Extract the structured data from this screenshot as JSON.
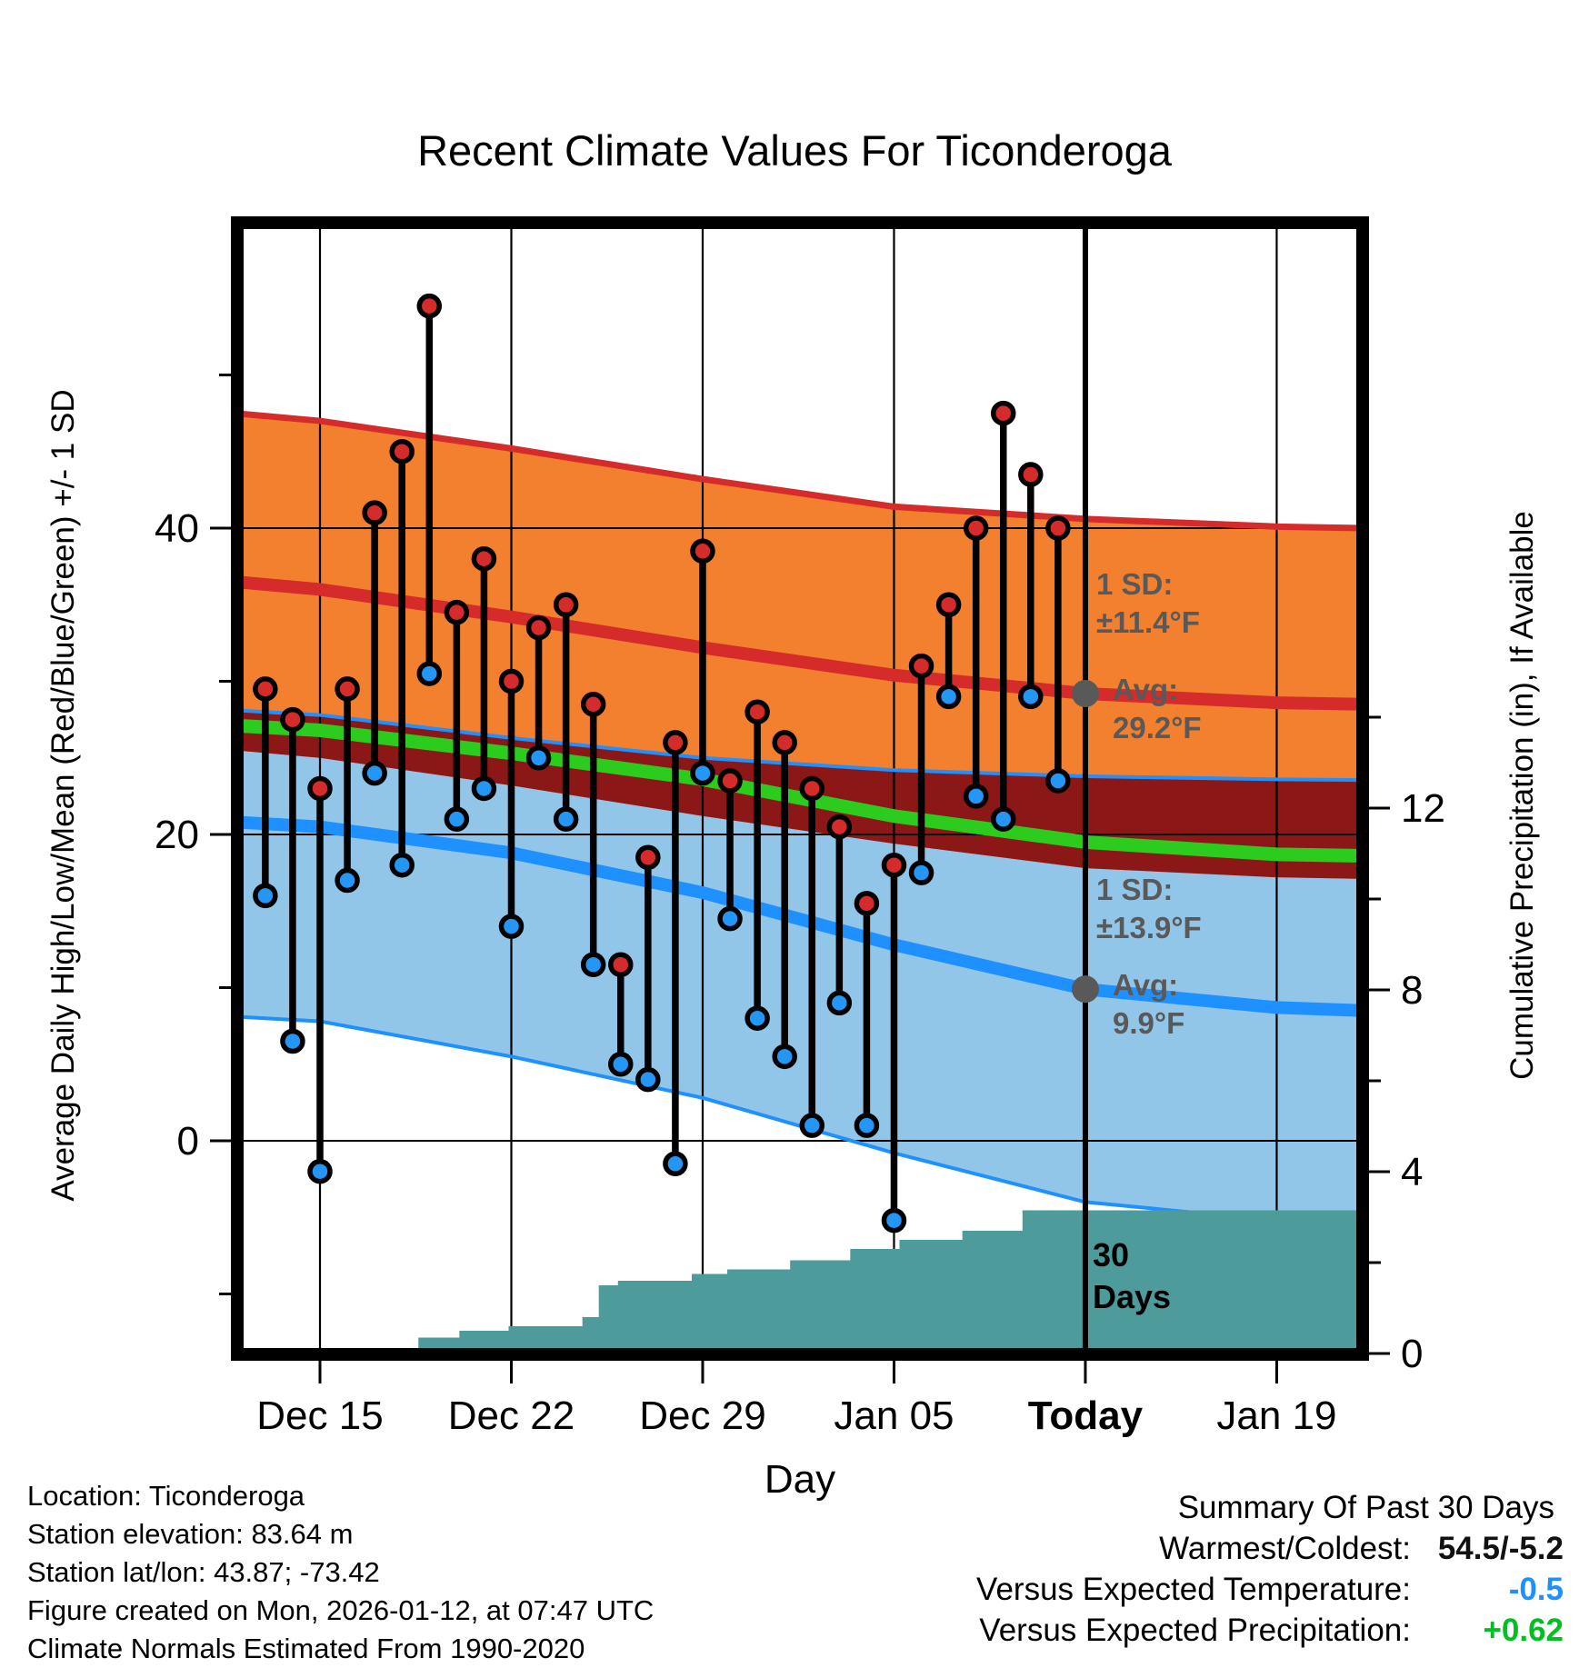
{
  "title": "Recent Climate Values For Ticonderoga",
  "axes": {
    "left_title": "Average Daily High/Low/Mean (Red/Blue/Green) +/- 1 SD",
    "right_title": "Cumulative Precipitation (in), If Available",
    "x_title": "Day"
  },
  "annotations": {
    "high": {
      "sd_label": "1 SD:",
      "sd_value": "±11.4°F",
      "avg_label": "Avg:",
      "avg_value": "29.2°F"
    },
    "low": {
      "sd_label": "1 SD:",
      "sd_value": "±13.9°F",
      "avg_label": "Avg:",
      "avg_value": "9.9°F"
    },
    "period": {
      "line1": "30",
      "line2": "Days"
    }
  },
  "footer_left": {
    "lines": [
      "Location: Ticonderoga",
      "Station elevation: 83.64 m",
      "Station lat/lon: 43.87; -73.42",
      "Figure created on Mon, 2026-01-12, at 07:47 UTC",
      "Climate Normals Estimated From 1990-2020"
    ]
  },
  "summary": {
    "title": "Summary Of Past 30 Days",
    "rows": [
      {
        "label": "Warmest/Coldest:",
        "value": "54.5/-5.2",
        "color": "#111111"
      },
      {
        "label": "Versus Expected Temperature:",
        "value": "-0.5",
        "color": "#1E90FF"
      },
      {
        "label": "Versus Expected Precipitation:",
        "value": "+0.62",
        "color": "#00BF22"
      }
    ]
  },
  "chart_data": {
    "type": "scatter",
    "subtype": "daily-high-low-stems-with-climatology-bands",
    "x_axis": {
      "ticks": [
        {
          "label": "Dec 15",
          "day": 2,
          "bold": false
        },
        {
          "label": "Dec 22",
          "day": 9,
          "bold": false
        },
        {
          "label": "Dec 29",
          "day": 16,
          "bold": false
        },
        {
          "label": "Jan 05",
          "day": 23,
          "bold": false
        },
        {
          "label": "Today",
          "day": 30,
          "bold": true
        },
        {
          "label": "Jan 19",
          "day": 37,
          "bold": false
        }
      ],
      "range_days": [
        -1.0,
        40.1
      ]
    },
    "y_left_axis": {
      "unit": "°F",
      "major_ticks": [
        {
          "label": "40",
          "value": 40
        },
        {
          "label": "20",
          "value": 20
        },
        {
          "label": "0",
          "value": 0
        }
      ],
      "minor_ticks": [
        50,
        30,
        10,
        -10
      ],
      "gridline_values": [
        40,
        20,
        0
      ]
    },
    "y_right_axis": {
      "unit": "in",
      "major_ticks": [
        {
          "label": "12",
          "value": 12
        },
        {
          "label": "8",
          "value": 8
        },
        {
          "label": "4",
          "value": 4
        },
        {
          "label": "0",
          "value": 0
        }
      ],
      "minor_ticks": [
        14,
        10,
        6,
        2
      ]
    },
    "dates": [
      "Dec 13",
      "Dec 14",
      "Dec 15",
      "Dec 16",
      "Dec 17",
      "Dec 18",
      "Dec 19",
      "Dec 20",
      "Dec 21",
      "Dec 22",
      "Dec 23",
      "Dec 24",
      "Dec 25",
      "Dec 26",
      "Dec 27",
      "Dec 28",
      "Dec 29",
      "Dec 30",
      "Dec 31",
      "Jan 01",
      "Jan 02",
      "Jan 03",
      "Jan 04",
      "Jan 05",
      "Jan 06",
      "Jan 07",
      "Jan 08",
      "Jan 09",
      "Jan 10",
      "Jan 11"
    ],
    "daily_high_f": [
      29.5,
      27.5,
      23,
      29.5,
      41,
      45,
      54.5,
      34.5,
      38,
      30,
      33.5,
      35,
      28.5,
      11.5,
      18.5,
      26,
      38.5,
      23.5,
      28,
      26,
      23,
      20.5,
      15.5,
      18,
      31,
      35,
      40,
      47.5,
      43.5,
      40
    ],
    "daily_low_f": [
      16,
      6.5,
      -2,
      17,
      24,
      18,
      30.5,
      21,
      23,
      14,
      25,
      21,
      11.5,
      5,
      4,
      -1.5,
      24,
      14.5,
      8,
      5.5,
      1,
      9,
      1,
      -5.2,
      17.5,
      29,
      22.5,
      21,
      29,
      23.5
    ],
    "today_day": 30,
    "today_markers": [
      {
        "value": 29.2,
        "series": "high-mean"
      },
      {
        "value": 9.9,
        "series": "low-mean"
      }
    ],
    "normals": {
      "days": [
        -3,
        2,
        9,
        16,
        23,
        30,
        37,
        40.2
      ],
      "high_mean": [
        36.8,
        36.0,
        34.2,
        32.2,
        30.4,
        29.2,
        28.6,
        28.5
      ],
      "high_upper": [
        47.8,
        47.0,
        45.2,
        43.2,
        41.4,
        40.6,
        40.1,
        40.0
      ],
      "high_lower": [
        25.8,
        25.0,
        23.2,
        21.2,
        19.4,
        17.8,
        17.2,
        17.1
      ],
      "low_mean": [
        21.0,
        20.5,
        18.8,
        16.2,
        12.8,
        9.9,
        8.7,
        8.5
      ],
      "low_upper": [
        28.3,
        27.8,
        26.3,
        25.0,
        24.2,
        23.8,
        23.6,
        23.55
      ],
      "low_lower": [
        8.3,
        7.8,
        5.5,
        2.8,
        -0.8,
        -4.0,
        -5.2,
        -5.4
      ],
      "mean": [
        27.3,
        26.8,
        25.3,
        23.6,
        21.2,
        19.5,
        18.7,
        18.6
      ]
    },
    "precip_cumulative_steps": [
      [
        5.4,
        0
      ],
      [
        5.6,
        0.35
      ],
      [
        7.1,
        0.5
      ],
      [
        8.9,
        0.6
      ],
      [
        11.6,
        0.8
      ],
      [
        12.2,
        1.5
      ],
      [
        12.9,
        1.6
      ],
      [
        15.6,
        1.75
      ],
      [
        16.9,
        1.85
      ],
      [
        19.2,
        2.05
      ],
      [
        21.4,
        2.3
      ],
      [
        23.2,
        2.5
      ],
      [
        25.5,
        2.7
      ],
      [
        27.7,
        3.15
      ],
      [
        40.2,
        3.15
      ]
    ],
    "colors": {
      "orange_band": "#F2802F",
      "red_line": "#D62B2B",
      "maroon_overlap": "#8B1717",
      "green_mean": "#2BCC1E",
      "light_blue_band": "#92C6E9",
      "blue_line": "#1E90FF",
      "red_dot": "#D62B2B",
      "blue_dot": "#2496F5",
      "teal_precip": "#4E9B9B",
      "gray_annotation": "#595959",
      "frame": "#000000"
    }
  }
}
